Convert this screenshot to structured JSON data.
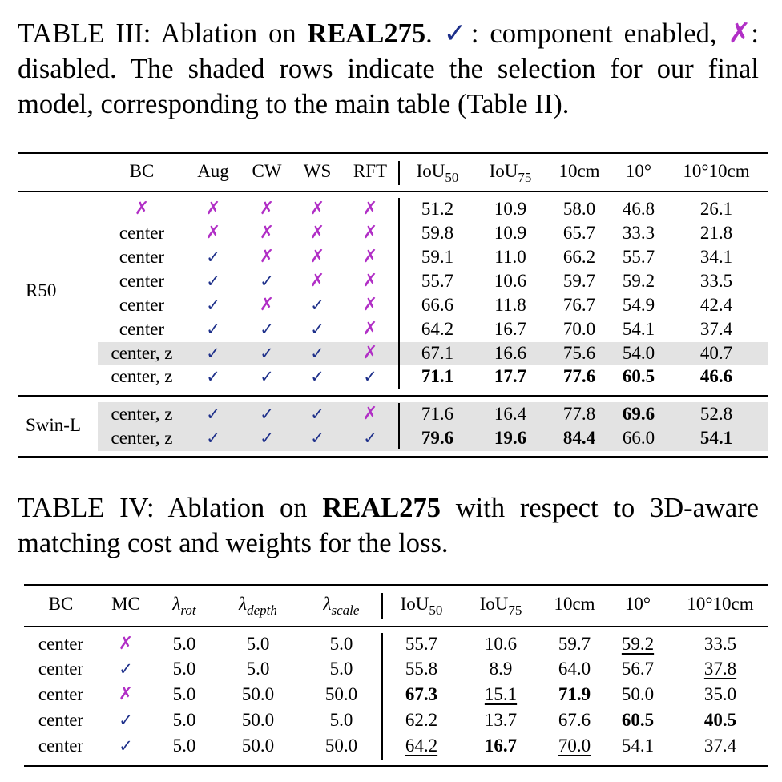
{
  "table3": {
    "caption": {
      "label": "TABLE III: Ablation on ",
      "dataset": "REAL275",
      "mid1": ". ",
      "mid2": ": component enabled, ",
      "mid3": ": disabled. The shaded rows indicate the selection for our final model, corresponding to the main table (Table II).",
      "check_symbol": "✓",
      "cross_symbol": "✗"
    },
    "headers": [
      "BC",
      "Aug",
      "CW",
      "WS",
      "RFT",
      "IoU",
      "50",
      "IoU",
      "75",
      "10cm",
      "10°",
      "10°10cm"
    ],
    "groups": [
      {
        "name": "R50"
      },
      {
        "name": "Swin-L"
      }
    ],
    "rows": [
      {
        "bc": "✗",
        "aug": "✗",
        "cw": "✗",
        "ws": "✗",
        "rft": "✗",
        "iou50": "51.2",
        "iou75": "10.9",
        "cm10": "58.0",
        "deg10": "46.8",
        "deg10cm10": "26.1"
      },
      {
        "bc": "center",
        "aug": "✗",
        "cw": "✗",
        "ws": "✗",
        "rft": "✗",
        "iou50": "59.8",
        "iou75": "10.9",
        "cm10": "65.7",
        "deg10": "33.3",
        "deg10cm10": "21.8"
      },
      {
        "bc": "center",
        "aug": "✓",
        "cw": "✗",
        "ws": "✗",
        "rft": "✗",
        "iou50": "59.1",
        "iou75": "11.0",
        "cm10": "66.2",
        "deg10": "55.7",
        "deg10cm10": "34.1"
      },
      {
        "bc": "center",
        "aug": "✓",
        "cw": "✓",
        "ws": "✗",
        "rft": "✗",
        "iou50": "55.7",
        "iou75": "10.6",
        "cm10": "59.7",
        "deg10": "59.2",
        "deg10cm10": "33.5"
      },
      {
        "bc": "center",
        "aug": "✓",
        "cw": "✗",
        "ws": "✓",
        "rft": "✗",
        "iou50": "66.6",
        "iou75": "11.8",
        "cm10": "76.7",
        "deg10": "54.9",
        "deg10cm10": "42.4"
      },
      {
        "bc": "center",
        "aug": "✓",
        "cw": "✓",
        "ws": "✓",
        "rft": "✗",
        "iou50": "64.2",
        "iou75": "16.7",
        "cm10": "70.0",
        "deg10": "54.1",
        "deg10cm10": "37.4"
      },
      {
        "bc": "center, z",
        "aug": "✓",
        "cw": "✓",
        "ws": "✓",
        "rft": "✗",
        "iou50": "67.1",
        "iou75": "16.6",
        "cm10": "75.6",
        "deg10": "54.0",
        "deg10cm10": "40.7"
      },
      {
        "bc": "center, z",
        "aug": "✓",
        "cw": "✓",
        "ws": "✓",
        "rft": "✓",
        "iou50": "71.1",
        "iou75": "17.7",
        "cm10": "77.6",
        "deg10": "60.5",
        "deg10cm10": "46.6"
      },
      {
        "bc": "center, z",
        "aug": "✓",
        "cw": "✓",
        "ws": "✓",
        "rft": "✗",
        "iou50": "71.6",
        "iou75": "16.4",
        "cm10": "77.8",
        "deg10": "69.6",
        "deg10cm10": "52.8"
      },
      {
        "bc": "center, z",
        "aug": "✓",
        "cw": "✓",
        "ws": "✓",
        "rft": "✓",
        "iou50": "79.6",
        "iou75": "19.6",
        "cm10": "84.4",
        "deg10": "66.0",
        "deg10cm10": "54.1"
      }
    ],
    "bold_cells": [
      "7.iou50",
      "7.iou75",
      "7.cm10",
      "7.deg10",
      "7.deg10cm10",
      "8.deg10",
      "9.iou50",
      "9.iou75",
      "9.cm10",
      "9.deg10cm10"
    ],
    "shaded_rows": [
      6,
      8,
      9
    ]
  },
  "table4": {
    "caption": {
      "label": "TABLE IV: Ablation on ",
      "dataset": "REAL275",
      "rest": " with respect to 3D-aware matching cost and weights for the loss."
    },
    "headers": [
      "BC",
      "MC",
      "λ",
      "rot",
      "λ",
      "depth",
      "λ",
      "scale",
      "IoU",
      "50",
      "IoU",
      "75",
      "10cm",
      "10°",
      "10°10cm"
    ],
    "rows": [
      {
        "bc": "center",
        "mc": "✗",
        "lrot": "5.0",
        "ldepth": "5.0",
        "lscale": "5.0",
        "iou50": "55.7",
        "iou75": "10.6",
        "cm10": "59.7",
        "deg10": "59.2",
        "deg10cm10": "33.5"
      },
      {
        "bc": "center",
        "mc": "✓",
        "lrot": "5.0",
        "ldepth": "5.0",
        "lscale": "5.0",
        "iou50": "55.8",
        "iou75": "8.9",
        "cm10": "64.0",
        "deg10": "56.7",
        "deg10cm10": "37.8"
      },
      {
        "bc": "center",
        "mc": "✗",
        "lrot": "5.0",
        "ldepth": "50.0",
        "lscale": "50.0",
        "iou50": "67.3",
        "iou75": "15.1",
        "cm10": "71.9",
        "deg10": "50.0",
        "deg10cm10": "35.0"
      },
      {
        "bc": "center",
        "mc": "✓",
        "lrot": "5.0",
        "ldepth": "50.0",
        "lscale": "5.0",
        "iou50": "62.2",
        "iou75": "13.7",
        "cm10": "67.6",
        "deg10": "60.5",
        "deg10cm10": "40.5"
      },
      {
        "bc": "center",
        "mc": "✓",
        "lrot": "5.0",
        "ldepth": "50.0",
        "lscale": "50.0",
        "iou50": "64.2",
        "iou75": "16.7",
        "cm10": "70.0",
        "deg10": "54.1",
        "deg10cm10": "37.4"
      }
    ],
    "bold_cells": [
      "2.iou50",
      "2.cm10",
      "3.deg10",
      "3.deg10cm10",
      "4.iou75"
    ],
    "underline_cells": [
      "0.deg10",
      "1.deg10cm10",
      "2.iou75",
      "4.iou50",
      "4.cm10"
    ]
  }
}
